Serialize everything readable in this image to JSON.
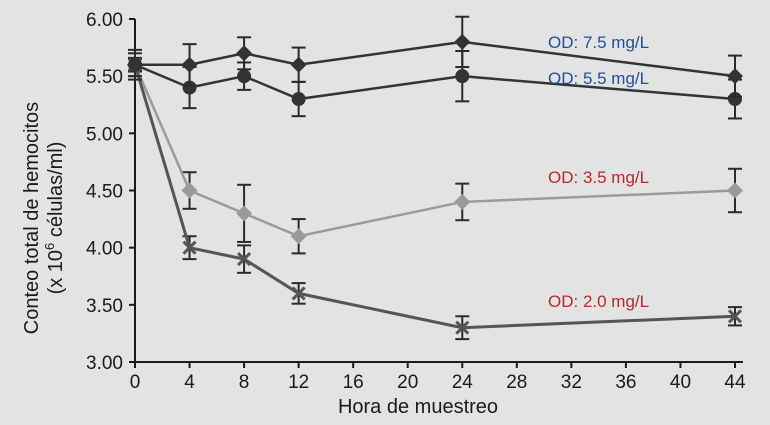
{
  "chart_data": {
    "type": "line",
    "xlabel": "Hora de muestreo",
    "ylabel_line1": "Conteo total de hemocitos",
    "ylabel_line2_prefix": "(x 10",
    "ylabel_line2_sup": "6",
    "ylabel_line2_suffix": " células/ml)",
    "xlim": [
      0,
      44
    ],
    "ylim": [
      3.0,
      6.0
    ],
    "xticks": [
      0,
      4,
      8,
      12,
      16,
      20,
      24,
      28,
      32,
      36,
      40,
      44
    ],
    "yticks": [
      "3.00",
      "3.50",
      "4.00",
      "4.50",
      "5.00",
      "5.50",
      "6.00"
    ],
    "grid": false,
    "series": [
      {
        "name": "OD: 7.5 mg/L",
        "color": "#333333",
        "marker": "diamond",
        "label_color": "#1f4f96",
        "x": [
          0,
          4,
          8,
          12,
          24,
          44
        ],
        "y": [
          5.6,
          5.6,
          5.7,
          5.6,
          5.8,
          5.5
        ],
        "err": [
          0.13,
          0.18,
          0.14,
          0.15,
          0.22,
          0.18
        ]
      },
      {
        "name": "OD: 5.5 mg/L",
        "color": "#333333",
        "marker": "circle",
        "label_color": "#1f4f96",
        "x": [
          0,
          4,
          8,
          12,
          24,
          44
        ],
        "y": [
          5.6,
          5.4,
          5.5,
          5.3,
          5.5,
          5.3
        ],
        "err": [
          0.1,
          0.18,
          0.12,
          0.15,
          0.22,
          0.17
        ]
      },
      {
        "name": "OD: 3.5 mg/L",
        "color": "#9a9a9a",
        "marker": "diamond",
        "label_color": "#b42a2a",
        "x": [
          0,
          4,
          8,
          12,
          24,
          44
        ],
        "y": [
          5.6,
          4.5,
          4.3,
          4.1,
          4.4,
          4.5
        ],
        "err": [
          0.06,
          0.16,
          0.25,
          0.15,
          0.16,
          0.19
        ]
      },
      {
        "name": "OD: 2.0 mg/L",
        "color": "#555555",
        "marker": "x",
        "label_color": "#b42a2a",
        "x": [
          0,
          4,
          8,
          12,
          24,
          44
        ],
        "y": [
          5.6,
          4.0,
          3.9,
          3.6,
          3.3,
          3.4
        ],
        "err": [
          0.05,
          0.1,
          0.12,
          0.09,
          0.1,
          0.08
        ]
      }
    ]
  }
}
